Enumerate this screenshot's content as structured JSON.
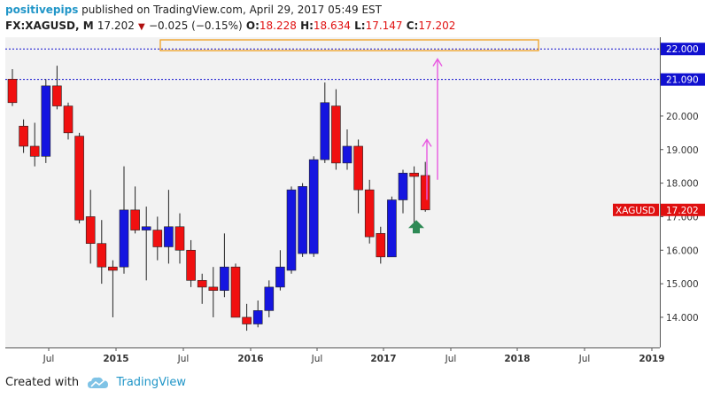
{
  "header": {
    "author": "positivepips",
    "published": "published on TradingView.com, April 29, 2017 05:49 EST",
    "symbol_line": "FX:XAGUSD, M",
    "last": "17.202",
    "change": "−0.025 (−0.15%)",
    "open_label": "O:",
    "open": "18.228",
    "high_label": "H:",
    "high": "18.634",
    "low_label": "L:",
    "low": "17.147",
    "close_label": "C:",
    "close": "17.202"
  },
  "footer": {
    "created_with": "Created with",
    "brand": "TradingView"
  },
  "colors": {
    "up": "#1515e0",
    "down": "#f01010",
    "background": "#f2f2f2",
    "level_line": "#1010d0",
    "zone_border": "#f0a020",
    "projection_arrow": "#e858e0",
    "marker_arrow": "#2e8a55",
    "price_tag": "#e01010"
  },
  "chart_data": {
    "type": "candlestick",
    "title": "",
    "xlabel": "",
    "ylabel": "",
    "ylim": [
      13.1,
      22.35
    ],
    "x_tick_labels": [
      "Jul",
      "2015",
      "Jul",
      "2016",
      "Jul",
      "2017",
      "Jul",
      "2018",
      "Jul",
      "2019"
    ],
    "y_tick_labels": [
      "14.000",
      "15.000",
      "16.000",
      "17.000",
      "18.000",
      "19.000",
      "20.000",
      "21.090",
      "22.000"
    ],
    "y_tick_values": [
      14,
      15,
      16,
      17,
      18,
      19,
      20,
      21.09,
      22
    ],
    "highlighted_levels": [
      21.09,
      22.0
    ],
    "last_price_label": "XAGUSD",
    "last_price": "17.202",
    "candles": [
      {
        "open": 21.1,
        "high": 21.4,
        "low": 20.3,
        "close": 20.4
      },
      {
        "open": 19.7,
        "high": 19.9,
        "low": 18.9,
        "close": 19.1
      },
      {
        "open": 19.1,
        "high": 19.8,
        "low": 18.5,
        "close": 18.8
      },
      {
        "open": 18.8,
        "high": 21.1,
        "low": 18.6,
        "close": 20.9
      },
      {
        "open": 20.9,
        "high": 21.5,
        "low": 20.2,
        "close": 20.3
      },
      {
        "open": 20.3,
        "high": 20.4,
        "low": 19.3,
        "close": 19.5
      },
      {
        "open": 19.4,
        "high": 19.5,
        "low": 16.8,
        "close": 16.9
      },
      {
        "open": 17.0,
        "high": 17.8,
        "low": 15.6,
        "close": 16.2
      },
      {
        "open": 16.2,
        "high": 16.9,
        "low": 15.0,
        "close": 15.5
      },
      {
        "open": 15.5,
        "high": 15.7,
        "low": 14.0,
        "close": 15.4
      },
      {
        "open": 15.5,
        "high": 18.5,
        "low": 15.3,
        "close": 17.2
      },
      {
        "open": 17.2,
        "high": 17.9,
        "low": 16.5,
        "close": 16.6
      },
      {
        "open": 16.6,
        "high": 17.3,
        "low": 15.1,
        "close": 16.7
      },
      {
        "open": 16.6,
        "high": 17.0,
        "low": 15.7,
        "close": 16.1
      },
      {
        "open": 16.1,
        "high": 17.8,
        "low": 15.6,
        "close": 16.7
      },
      {
        "open": 16.7,
        "high": 17.1,
        "low": 15.6,
        "close": 16.0
      },
      {
        "open": 16.0,
        "high": 16.3,
        "low": 14.9,
        "close": 15.1
      },
      {
        "open": 15.1,
        "high": 15.3,
        "low": 14.4,
        "close": 14.9
      },
      {
        "open": 14.9,
        "high": 15.5,
        "low": 14.0,
        "close": 14.8
      },
      {
        "open": 14.8,
        "high": 16.5,
        "low": 14.6,
        "close": 15.5
      },
      {
        "open": 15.5,
        "high": 15.6,
        "low": 14.0,
        "close": 14.0
      },
      {
        "open": 14.0,
        "high": 14.4,
        "low": 13.6,
        "close": 13.8
      },
      {
        "open": 13.8,
        "high": 14.5,
        "low": 13.7,
        "close": 14.2
      },
      {
        "open": 14.2,
        "high": 15.1,
        "low": 14.0,
        "close": 14.9
      },
      {
        "open": 14.9,
        "high": 16.0,
        "low": 14.8,
        "close": 15.5
      },
      {
        "open": 15.4,
        "high": 17.9,
        "low": 15.3,
        "close": 17.8
      },
      {
        "open": 15.9,
        "high": 18.0,
        "low": 15.8,
        "close": 17.9
      },
      {
        "open": 15.9,
        "high": 18.8,
        "low": 15.8,
        "close": 18.7
      },
      {
        "open": 18.7,
        "high": 21.0,
        "low": 18.6,
        "close": 20.4
      },
      {
        "open": 20.3,
        "high": 20.8,
        "low": 18.4,
        "close": 18.6
      },
      {
        "open": 18.6,
        "high": 19.6,
        "low": 18.4,
        "close": 19.1
      },
      {
        "open": 19.1,
        "high": 19.3,
        "low": 17.1,
        "close": 17.8
      },
      {
        "open": 17.8,
        "high": 18.1,
        "low": 16.2,
        "close": 16.4
      },
      {
        "open": 16.5,
        "high": 16.7,
        "low": 15.6,
        "close": 15.8
      },
      {
        "open": 15.8,
        "high": 17.6,
        "low": 15.8,
        "close": 17.5
      },
      {
        "open": 17.5,
        "high": 18.4,
        "low": 17.1,
        "close": 18.3
      },
      {
        "open": 18.3,
        "high": 18.5,
        "low": 16.6,
        "close": 18.2
      },
      {
        "open": 18.228,
        "high": 18.634,
        "low": 17.147,
        "close": 17.202
      }
    ]
  }
}
